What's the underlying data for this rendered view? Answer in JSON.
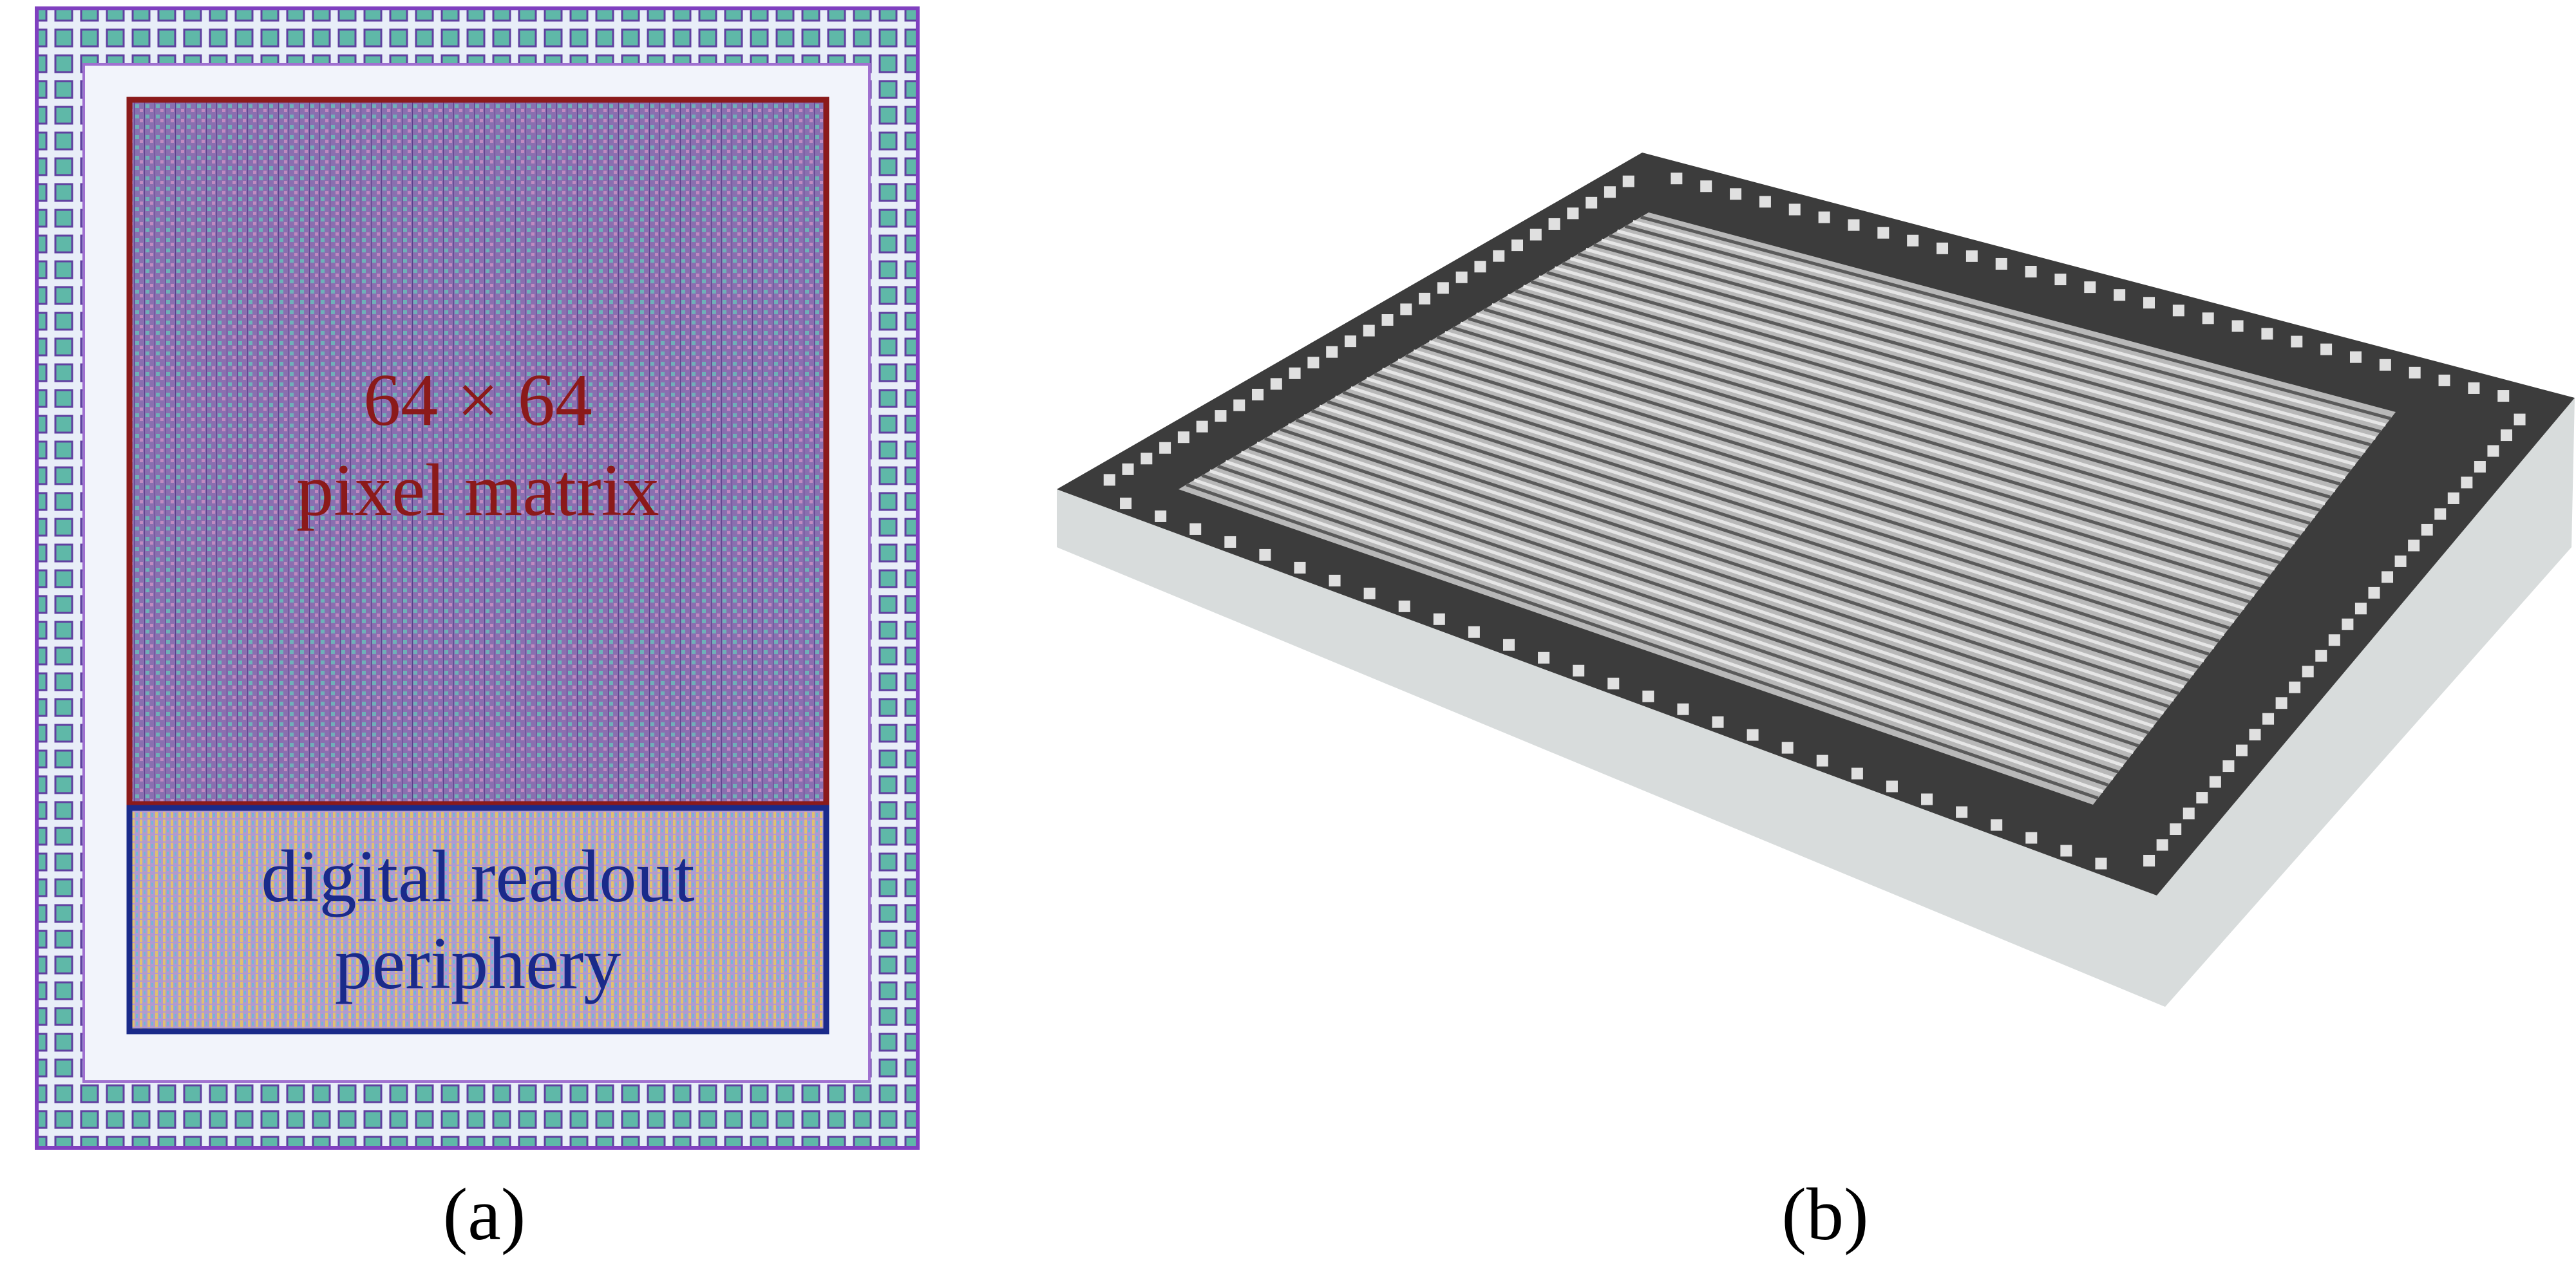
{
  "panel_a": {
    "label": "(a)",
    "matrix_label": [
      "64 × 64",
      "pixel matrix"
    ],
    "periphery_label": [
      "digital readout",
      "periphery"
    ]
  },
  "panel_b": {
    "label": "(b)"
  }
}
